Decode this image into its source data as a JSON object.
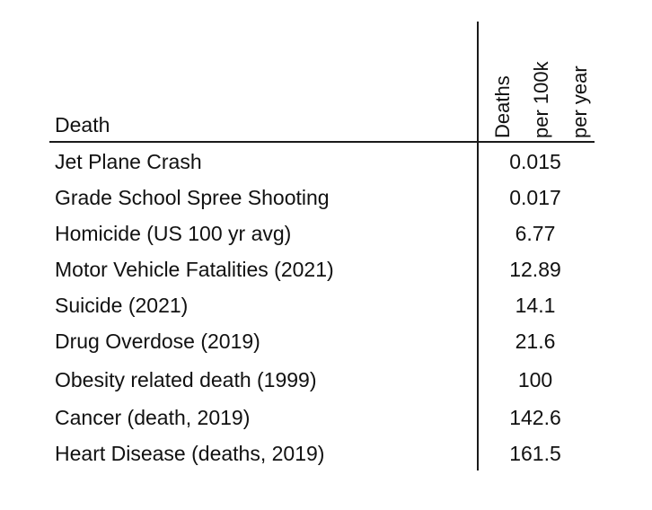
{
  "chart_data": {
    "type": "table",
    "columns": [
      "Death",
      "Deaths per 100k per year"
    ],
    "header": {
      "death_label": "Death",
      "value_label_lines": [
        "Deaths",
        "per 100k",
        "per year"
      ]
    },
    "rows": [
      {
        "label": "Jet Plane Crash",
        "value": "0.015"
      },
      {
        "label": "Grade School Spree Shooting",
        "value": "0.017"
      },
      {
        "label": "Homicide (US 100 yr avg)",
        "value": "6.77"
      },
      {
        "label": "Motor Vehicle Fatalities (2021)",
        "value": "12.89"
      },
      {
        "label": "Suicide (2021)",
        "value": "14.1"
      },
      {
        "label": "Drug Overdose (2019)",
        "value": "21.6"
      },
      {
        "label": "Obesity related death (1999)",
        "value": "100"
      },
      {
        "label": "Cancer (death, 2019)",
        "value": "142.6"
      },
      {
        "label": "Heart Disease (deaths, 2019)",
        "value": "161.5"
      }
    ]
  }
}
